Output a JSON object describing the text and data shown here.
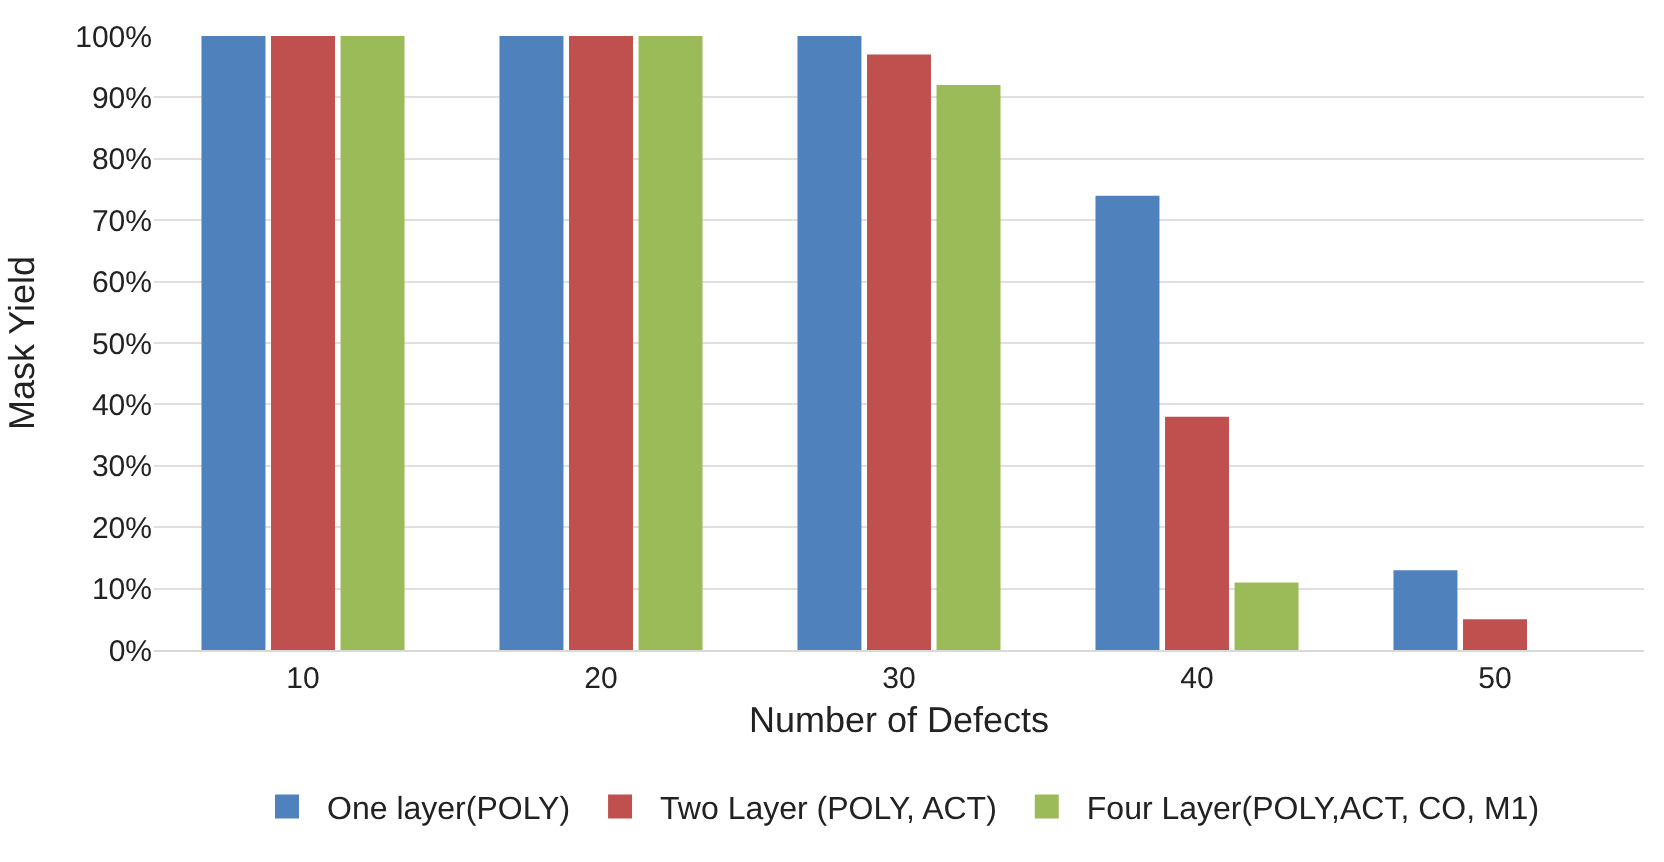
{
  "chart_data": {
    "type": "bar",
    "xlabel": "Number of Defects",
    "ylabel": "Mask Yield",
    "categories": [
      "10",
      "20",
      "30",
      "40",
      "50"
    ],
    "series": [
      {
        "name": "One layer(POLY)",
        "color": "#4f81bd",
        "values": [
          100,
          100,
          100,
          74,
          13
        ]
      },
      {
        "name": "Two Layer (POLY, ACT)",
        "color": "#c0504d",
        "values": [
          100,
          100,
          97,
          38,
          5
        ]
      },
      {
        "name": "Four Layer(POLY,ACT, CO, M1)",
        "color": "#9bbb59",
        "values": [
          100,
          100,
          92,
          11,
          0
        ]
      }
    ],
    "ylim": [
      0,
      100
    ],
    "yticks": [
      {
        "value": 0,
        "label": "0%"
      },
      {
        "value": 10,
        "label": "10%"
      },
      {
        "value": 20,
        "label": "20%"
      },
      {
        "value": 30,
        "label": "30%"
      },
      {
        "value": 40,
        "label": "40%"
      },
      {
        "value": 50,
        "label": "50%"
      },
      {
        "value": 60,
        "label": "60%"
      },
      {
        "value": 70,
        "label": "70%"
      },
      {
        "value": 80,
        "label": "80%"
      },
      {
        "value": 90,
        "label": "90%"
      },
      {
        "value": 100,
        "label": "100%"
      }
    ],
    "grid": "y",
    "legend": "bottom"
  }
}
